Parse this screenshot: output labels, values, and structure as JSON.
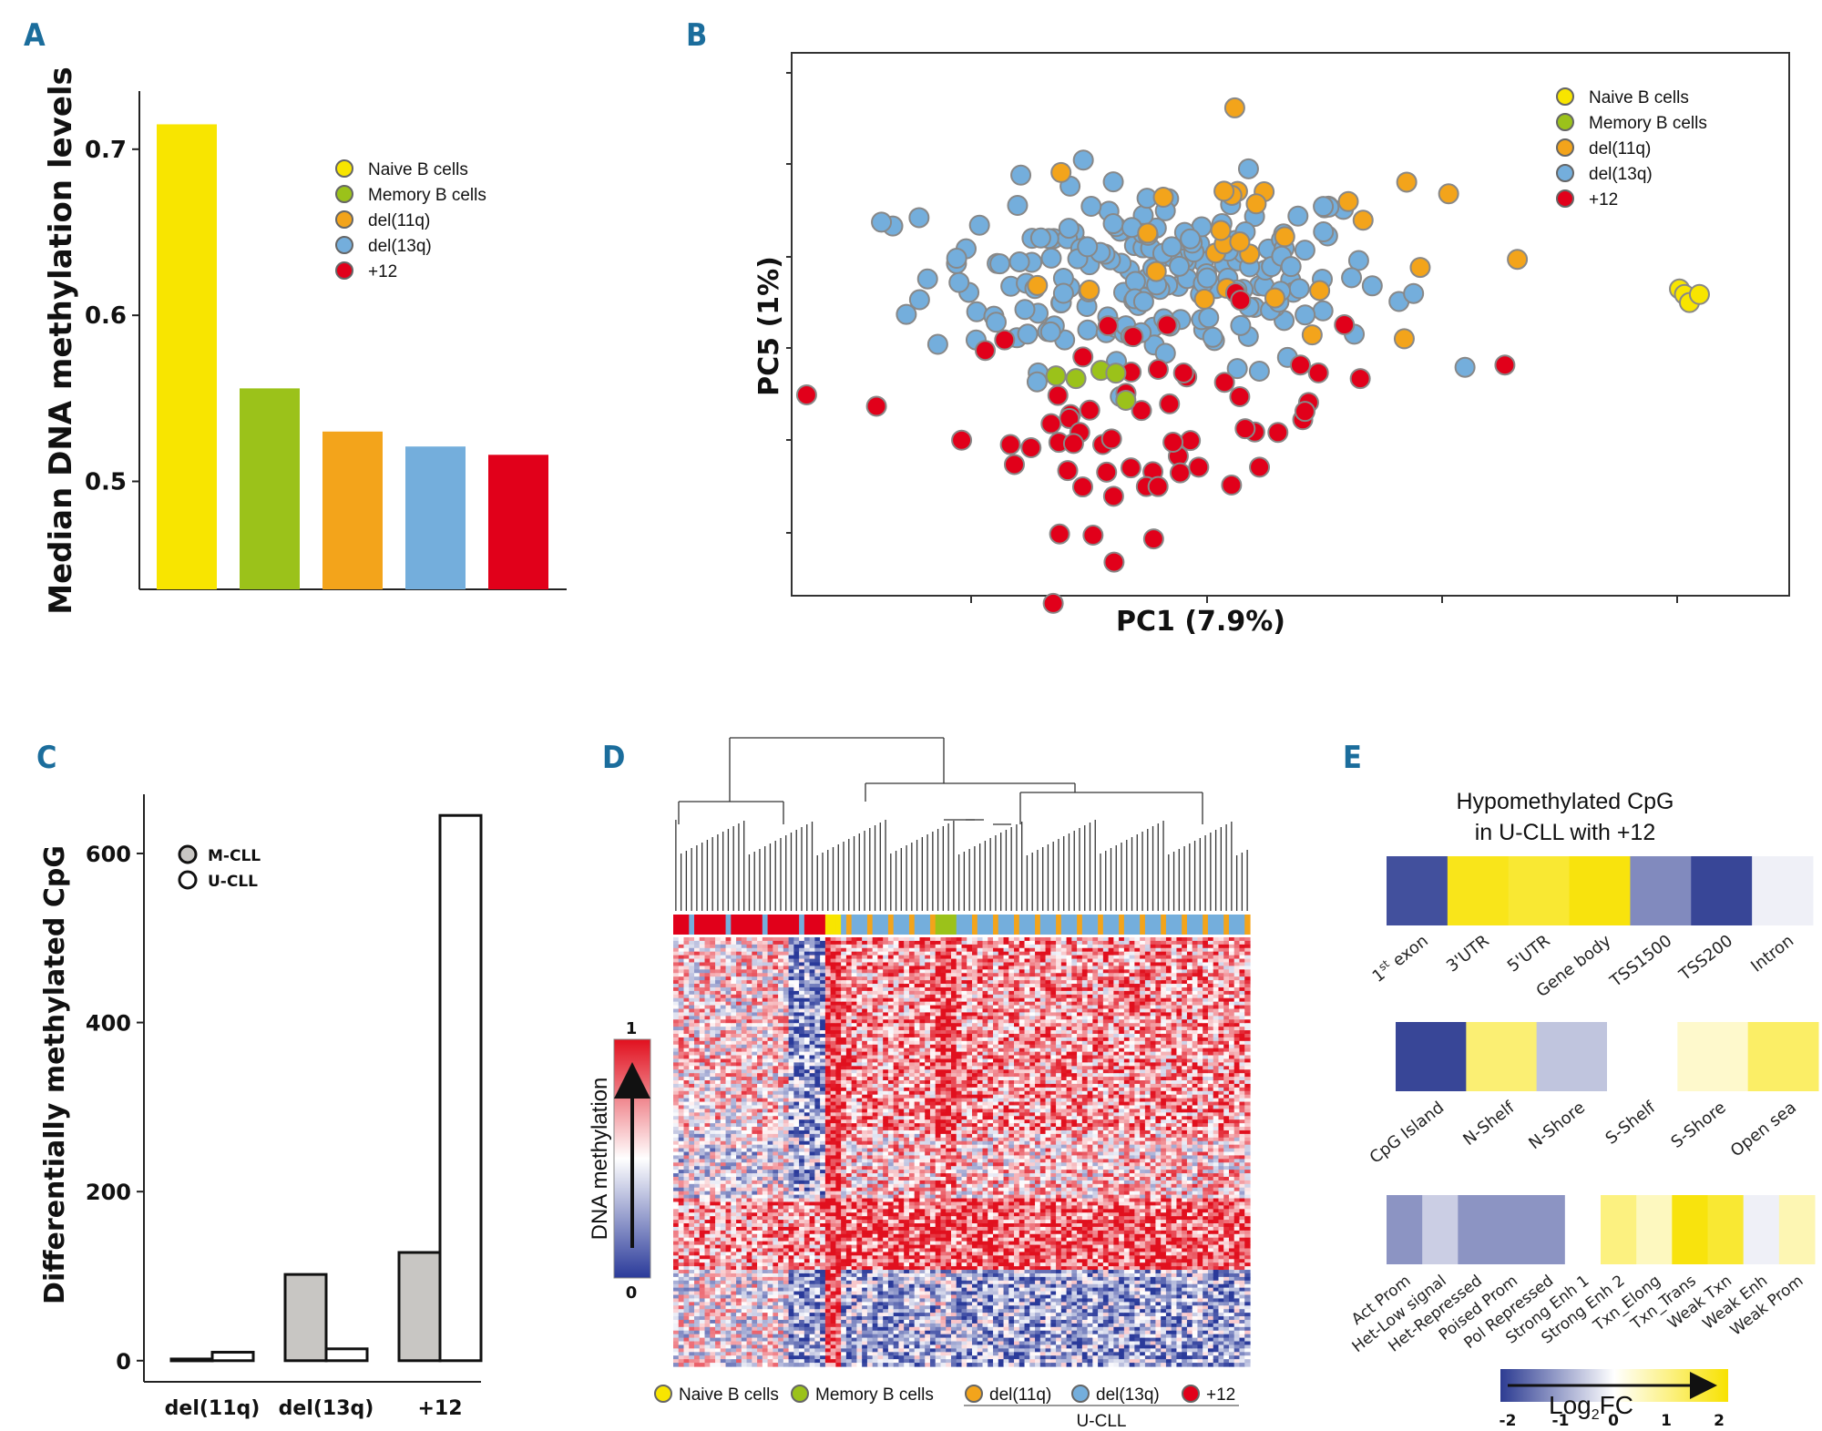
{
  "chart_data": [
    {
      "panel": "A",
      "type": "bar",
      "title": "",
      "xlabel": "",
      "ylabel": "Median DNA methylation levels",
      "ylim": [
        0.435,
        0.735
      ],
      "yticks": [
        "0.5",
        "0.6",
        "0.7"
      ],
      "categories": [
        "Naive B cells",
        "Memory B cells",
        "del(11q)",
        "del(13q)",
        "+12"
      ],
      "values": [
        0.715,
        0.556,
        0.53,
        0.521,
        0.516
      ],
      "colors": [
        "#f8e500",
        "#9bc21a",
        "#f3a41b",
        "#74aedc",
        "#e1001a"
      ],
      "legend": [
        "Naive B cells",
        "Memory B cells",
        "del(11q)",
        "del(13q)",
        "+12"
      ]
    },
    {
      "panel": "B",
      "type": "scatter",
      "xlabel": "PC1 (7.9%)",
      "ylabel": "PC5 (1%)",
      "legend": [
        "Naive B cells",
        "Memory B cells",
        "del(11q)",
        "del(13q)",
        "+12"
      ],
      "colors": [
        "#f8e500",
        "#9bc21a",
        "#f3a41b",
        "#74aedc",
        "#e1001a"
      ],
      "note": "Approximate PCA scores; tick labels not shown. del(13q) cluster centred, +12 below, Naive B cells separated at far right."
    },
    {
      "panel": "C",
      "type": "bar",
      "xlabel": "",
      "ylabel": "Differentially  methylated CpG",
      "ylim": [
        -25,
        670
      ],
      "yticks": [
        "0",
        "200",
        "400",
        "600"
      ],
      "categories": [
        "del(11q)",
        "del(13q)",
        "+12"
      ],
      "series": [
        {
          "name": "M-CLL",
          "values": [
            2,
            102,
            128
          ],
          "color": "#c8c6c3"
        },
        {
          "name": "U-CLL",
          "values": [
            10,
            14,
            645
          ],
          "color": "#ffffff"
        }
      ],
      "legend": [
        "M-CLL",
        "U-CLL"
      ]
    },
    {
      "panel": "D",
      "type": "heatmap",
      "colorbar_label": "DNA methylation",
      "colorbar_max": "1",
      "colorbar_min": "0",
      "legend": [
        "Naive B cells",
        "Memory B cells",
        "del(11q)",
        "del(13q)",
        "+12"
      ],
      "group_label": "U-CLL",
      "colors": [
        "#f8e500",
        "#9bc21a",
        "#f3a41b",
        "#74aedc",
        "#e1001a"
      ]
    },
    {
      "panel": "E",
      "type": "heatmap",
      "title_line1": "Hypomethylated CpG",
      "title_line2": "in U-CLL with +12",
      "colorbar_label": "Log",
      "colorbar_sub": "2",
      "colorbar_label_end": "FC",
      "colorbar_ticks": [
        "-2",
        "-1",
        "0",
        "1",
        "2"
      ],
      "rows": [
        {
          "categories": [
            "1st exon",
            "3'UTR",
            "5'UTR",
            "Gene body",
            "TSS1500",
            "TSS200",
            "Intron"
          ],
          "values": [
            -1.8,
            1.8,
            1.6,
            1.9,
            -1.2,
            -1.9,
            -0.15
          ]
        },
        {
          "categories": [
            "CpG Island",
            "N-Shelf",
            "N-Shore",
            "S-Shelf",
            "S-Shore",
            "Open sea"
          ],
          "values": [
            -1.9,
            1.1,
            -0.6,
            0.0,
            0.4,
            1.2
          ]
        },
        {
          "categories": [
            "Act Prom",
            "Het-Low signal",
            "Het-Repressed",
            "Poised Prom",
            "Pol Repressed",
            "Strong Enh 1",
            "Strong Enh 2",
            "Txn_Elong",
            "Txn_Trans",
            "Weak Txn",
            "Weak Enh",
            "Weak Prom"
          ],
          "values": [
            -1.1,
            -0.5,
            -1.1,
            -1.1,
            -1.1,
            0.0,
            1.0,
            0.5,
            1.9,
            1.6,
            -0.15,
            0.6
          ]
        }
      ]
    }
  ],
  "labels": {
    "panel_a": "A",
    "panel_b": "B",
    "panel_c": "C",
    "panel_d": "D",
    "panel_e": "E",
    "exon_superscript": "st",
    "legend_a": [
      "Naive B cells",
      "Memory B cells",
      "del(11q)",
      "del(13q)",
      "+12"
    ],
    "legend_c": [
      "M-CLL",
      "U-CLL"
    ]
  }
}
